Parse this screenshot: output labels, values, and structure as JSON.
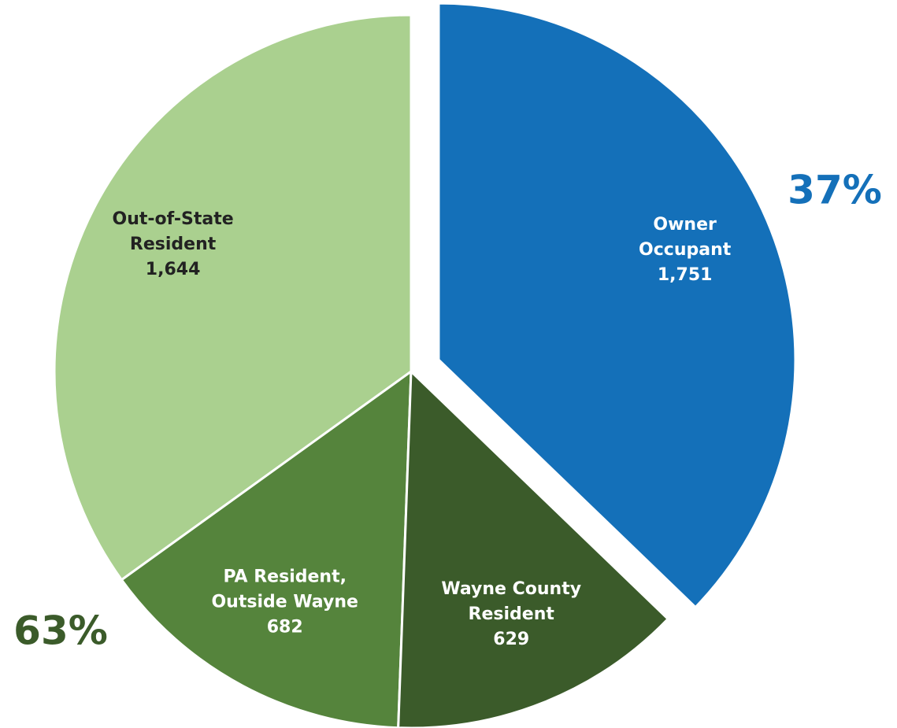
{
  "chart_data": {
    "type": "pie",
    "categories": [
      "Owner Occupant",
      "Wayne County Resident",
      "PA Resident, Outside Wayne",
      "Out-of-State Resident"
    ],
    "values": [
      1751,
      629,
      682,
      1644
    ],
    "value_labels": [
      "1,751",
      "629",
      "682",
      "1,644"
    ],
    "colors": [
      "#1470b9",
      "#3b5b2a",
      "#55843c",
      "#aad08f"
    ],
    "label_colors": [
      "#ffffff",
      "#ffffff",
      "#ffffff",
      "#222222"
    ],
    "exploded": [
      true,
      false,
      false,
      false
    ],
    "annotations": [
      {
        "text": "37%",
        "color": "#1470b9"
      },
      {
        "text": "63%",
        "color": "#3b5b2a"
      }
    ]
  }
}
